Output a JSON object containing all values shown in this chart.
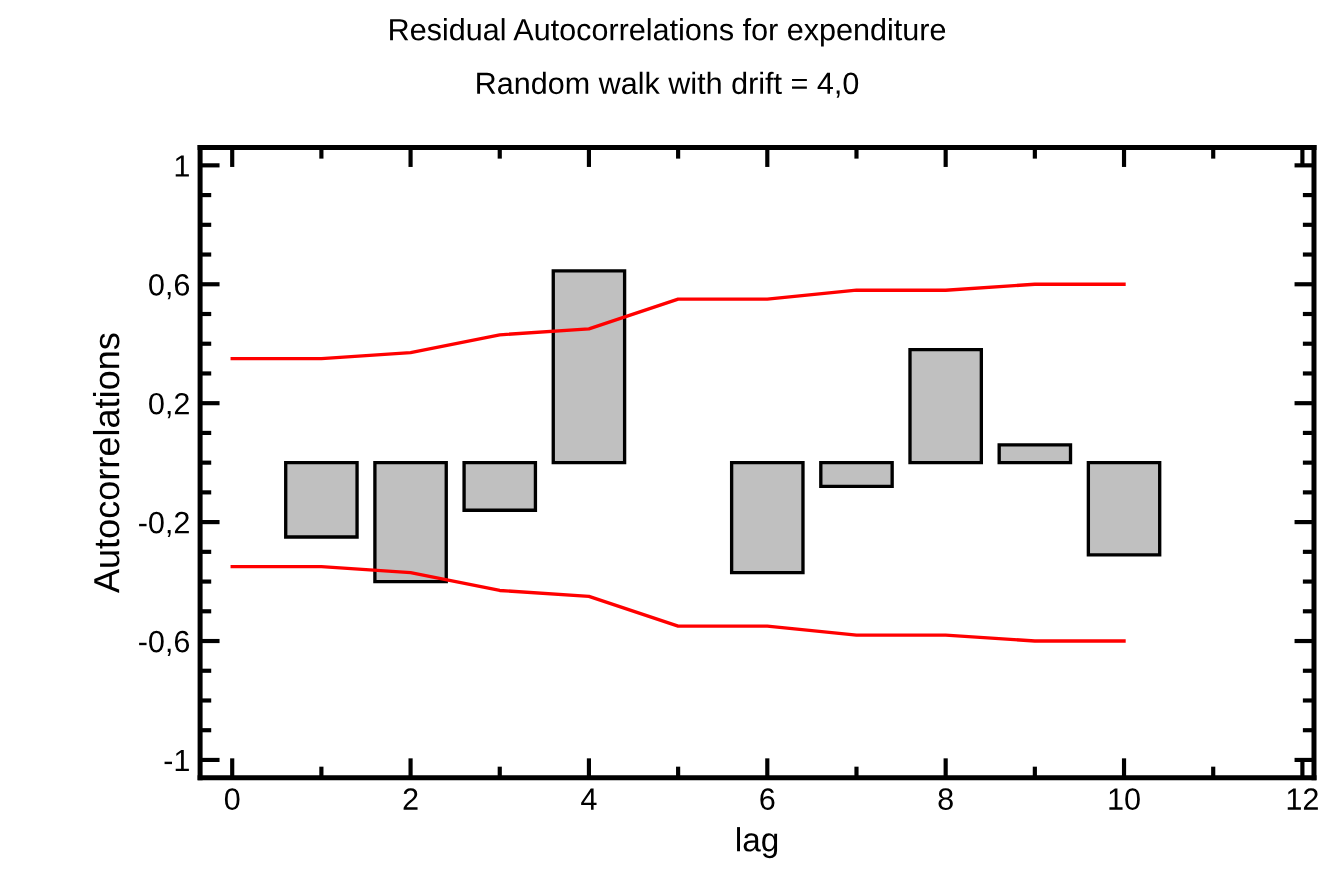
{
  "chart_data": {
    "type": "bar",
    "title": "Residual Autocorrelations for expenditure",
    "subtitle": "Random walk with drift = 4,0",
    "xlabel": "lag",
    "ylabel": "Autocorrelations",
    "xlim": [
      -0.36,
      12.13
    ],
    "xticks": [
      0,
      2,
      4,
      6,
      8,
      10,
      12
    ],
    "ylim": [
      -1.06,
      1.06
    ],
    "yticks": [
      {
        "value": -1,
        "label": "-1"
      },
      {
        "value": -0.6,
        "label": "-0,6"
      },
      {
        "value": -0.2,
        "label": "-0,2"
      },
      {
        "value": 0.2,
        "label": "0,2"
      },
      {
        "value": 0.6,
        "label": "0,6"
      },
      {
        "value": 1,
        "label": "1"
      }
    ],
    "grid": false,
    "legend": false,
    "series": [
      {
        "color": "#c0c0c0",
        "x": [
          1,
          2,
          3,
          4,
          5,
          6,
          7,
          8,
          9,
          10
        ],
        "values": [
          -0.25,
          -0.4,
          -0.16,
          0.645,
          null,
          -0.37,
          -0.08,
          0.38,
          0.06,
          -0.31
        ]
      },
      {
        "type": "line",
        "color": "#ff0000",
        "x": [
          0,
          1,
          2,
          3,
          4,
          5,
          6,
          7,
          8,
          9,
          10
        ],
        "values": [
          0.35,
          0.35,
          0.37,
          0.43,
          0.45,
          0.55,
          0.55,
          0.58,
          0.58,
          0.6,
          0.6
        ]
      },
      {
        "type": "line",
        "color": "#ff0000",
        "x": [
          0,
          1,
          2,
          3,
          4,
          5,
          6,
          7,
          8,
          9,
          10
        ],
        "values": [
          -0.35,
          -0.35,
          -0.37,
          -0.43,
          -0.45,
          -0.55,
          -0.55,
          -0.58,
          -0.58,
          -0.6,
          -0.6
        ]
      }
    ]
  }
}
